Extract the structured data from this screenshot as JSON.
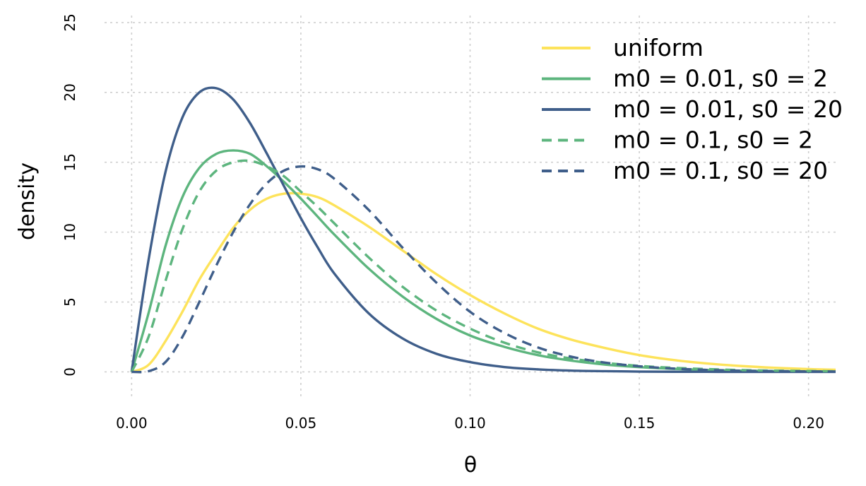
{
  "chart_data": {
    "type": "line",
    "title": "",
    "xlabel": "θ",
    "ylabel": "density",
    "xlim": [
      -0.008,
      0.208
    ],
    "ylim": [
      -2.0,
      25.5
    ],
    "x_ticks": [
      0.0,
      0.05,
      0.1,
      0.15,
      0.2
    ],
    "x_tick_labels": [
      "0.00",
      "0.05",
      "0.10",
      "0.15",
      "0.20"
    ],
    "y_ticks": [
      0,
      5,
      10,
      15,
      20,
      25
    ],
    "y_tick_labels": [
      "0",
      "5",
      "10",
      "15",
      "20",
      "25"
    ],
    "grid": true,
    "legend_position": "top-right",
    "x": [
      0,
      0.005,
      0.01,
      0.015,
      0.02,
      0.025,
      0.03,
      0.035,
      0.04,
      0.045,
      0.05,
      0.055,
      0.06,
      0.07,
      0.08,
      0.09,
      0.1,
      0.11,
      0.12,
      0.13,
      0.14,
      0.15,
      0.16,
      0.17,
      0.18,
      0.19,
      0.2,
      0.208
    ],
    "series": [
      {
        "name": "uniform",
        "color": "#fde35b",
        "dash": "solid",
        "values": [
          0,
          0.5,
          2.2,
          4.3,
          6.6,
          8.5,
          10.3,
          11.6,
          12.4,
          12.75,
          12.75,
          12.5,
          11.9,
          10.4,
          8.7,
          7.0,
          5.5,
          4.2,
          3.1,
          2.3,
          1.7,
          1.2,
          0.85,
          0.6,
          0.42,
          0.29,
          0.2,
          0.15
        ]
      },
      {
        "name": "m0 = 0.01, s0 = 2",
        "color": "#5db57e",
        "dash": "solid",
        "values": [
          0,
          4.2,
          9.0,
          12.5,
          14.6,
          15.6,
          15.85,
          15.6,
          14.7,
          13.6,
          12.4,
          11.1,
          9.8,
          7.4,
          5.4,
          3.8,
          2.6,
          1.8,
          1.2,
          0.8,
          0.52,
          0.34,
          0.22,
          0.14,
          0.09,
          0.06,
          0.04,
          0.03
        ]
      },
      {
        "name": "m0 = 0.01, s0 = 20",
        "color": "#3f5e8a",
        "dash": "solid",
        "values": [
          0,
          8.0,
          14.3,
          18.2,
          20.0,
          20.3,
          19.5,
          17.8,
          15.6,
          13.3,
          11.0,
          8.9,
          7.0,
          4.2,
          2.4,
          1.3,
          0.7,
          0.35,
          0.18,
          0.09,
          0.05,
          0.02,
          0.01,
          0.005,
          0,
          0,
          0,
          0
        ]
      },
      {
        "name": "m0 = 0.1, s0 = 2",
        "color": "#5db57e",
        "dash": "dashed",
        "values": [
          0,
          2.5,
          6.5,
          10.2,
          12.9,
          14.4,
          15.0,
          15.1,
          14.7,
          14.0,
          12.9,
          11.8,
          10.6,
          8.2,
          6.1,
          4.4,
          3.1,
          2.1,
          1.4,
          0.95,
          0.64,
          0.43,
          0.29,
          0.2,
          0.13,
          0.09,
          0.06,
          0.04
        ]
      },
      {
        "name": "m0 = 0.1, s0 = 20",
        "color": "#3f5e8a",
        "dash": "dashed",
        "values": [
          0,
          0.05,
          0.7,
          2.5,
          5.0,
          7.6,
          10.0,
          12.0,
          13.5,
          14.4,
          14.7,
          14.5,
          13.8,
          11.6,
          8.9,
          6.4,
          4.3,
          2.8,
          1.75,
          1.08,
          0.66,
          0.4,
          0.24,
          0.14,
          0.08,
          0.05,
          0.03,
          0.02
        ]
      }
    ]
  }
}
